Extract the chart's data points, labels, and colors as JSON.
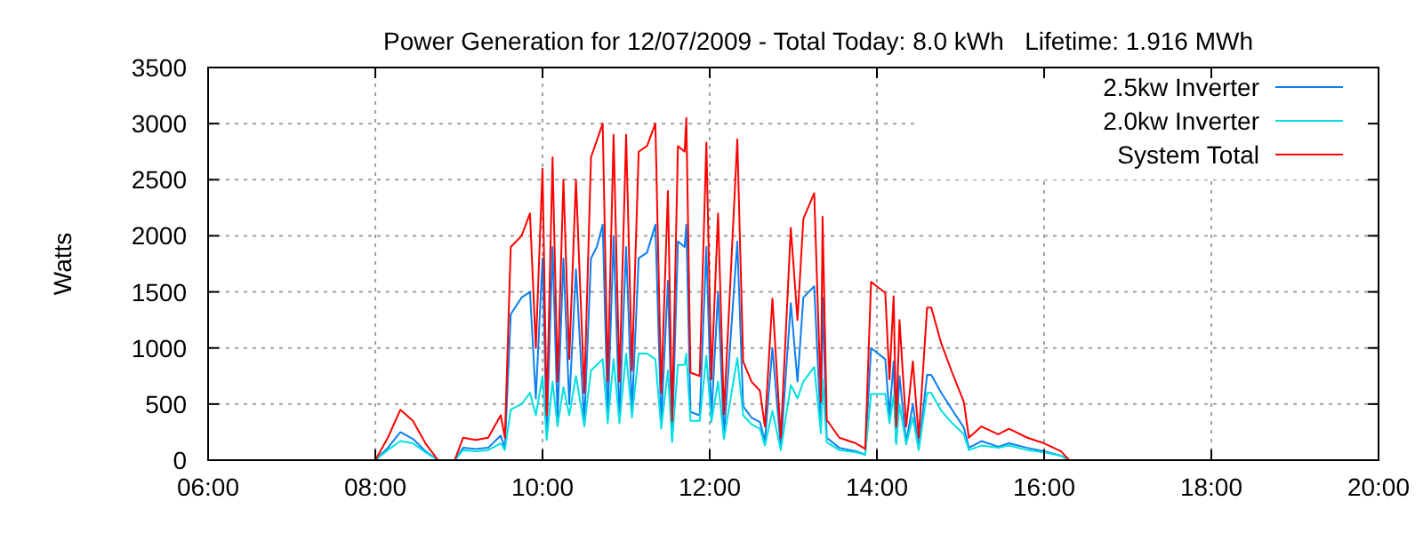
{
  "chart_data": {
    "type": "line",
    "title": "Power Generation for 12/07/2009 - Total Today: 8.0 kWh   Lifetime: 1.916 MWh",
    "ylabel": "Watts",
    "x": [
      8.0,
      8.15,
      8.3,
      8.45,
      8.6,
      8.75,
      8.95,
      9.05,
      9.2,
      9.35,
      9.5,
      9.55,
      9.62,
      9.75,
      9.85,
      9.92,
      10.0,
      10.05,
      10.12,
      10.18,
      10.25,
      10.32,
      10.4,
      10.5,
      10.58,
      10.65,
      10.72,
      10.78,
      10.85,
      10.92,
      11.0,
      11.07,
      11.15,
      11.25,
      11.35,
      11.42,
      11.5,
      11.55,
      11.62,
      11.7,
      11.72,
      11.77,
      11.88,
      11.96,
      12.02,
      12.1,
      12.17,
      12.33,
      12.4,
      12.5,
      12.6,
      12.66,
      12.75,
      12.85,
      12.97,
      13.05,
      13.12,
      13.25,
      13.33,
      13.35,
      13.4,
      13.55,
      13.75,
      13.86,
      13.93,
      14.1,
      14.15,
      14.2,
      14.23,
      14.27,
      14.35,
      14.43,
      14.5,
      14.6,
      14.65,
      14.77,
      14.9,
      15.04,
      15.1,
      15.25,
      15.45,
      15.58,
      15.8,
      16.0,
      16.2,
      16.3
    ],
    "series": [
      {
        "name": "2.5kw Inverter",
        "color": "#0a7ff0",
        "values": [
          0,
          110,
          250,
          190,
          80,
          0,
          0,
          110,
          100,
          110,
          220,
          110,
          1300,
          1450,
          1500,
          550,
          1800,
          220,
          1900,
          380,
          1800,
          500,
          1700,
          330,
          1800,
          1900,
          2100,
          380,
          2000,
          380,
          1900,
          440,
          1800,
          1850,
          2100,
          330,
          1600,
          190,
          1950,
          1900,
          2100,
          430,
          400,
          1900,
          380,
          1500,
          220,
          1950,
          480,
          380,
          340,
          170,
          1000,
          110,
          1400,
          700,
          1450,
          1550,
          280,
          1450,
          200,
          110,
          80,
          50,
          1000,
          900,
          400,
          880,
          160,
          750,
          160,
          500,
          110,
          760,
          760,
          600,
          450,
          290,
          110,
          170,
          120,
          150,
          110,
          80,
          40,
          0
        ]
      },
      {
        "name": "2.0kw Inverter",
        "color": "#00e0e0",
        "values": [
          0,
          90,
          170,
          150,
          70,
          0,
          0,
          90,
          80,
          90,
          150,
          90,
          450,
          500,
          600,
          400,
          750,
          180,
          700,
          300,
          650,
          400,
          750,
          300,
          800,
          850,
          900,
          330,
          900,
          330,
          950,
          380,
          950,
          950,
          900,
          280,
          800,
          160,
          850,
          850,
          950,
          350,
          350,
          930,
          340,
          700,
          190,
          910,
          400,
          320,
          280,
          130,
          440,
          90,
          670,
          550,
          700,
          830,
          240,
          720,
          160,
          90,
          70,
          50,
          590,
          590,
          330,
          580,
          140,
          500,
          140,
          380,
          90,
          600,
          600,
          440,
          330,
          230,
          90,
          130,
          110,
          130,
          90,
          70,
          40,
          0
        ]
      },
      {
        "name": "System Total",
        "color": "#ff0000",
        "values": [
          0,
          200,
          450,
          350,
          150,
          0,
          0,
          200,
          180,
          200,
          400,
          200,
          1900,
          2000,
          2200,
          1000,
          2600,
          400,
          2700,
          700,
          2500,
          900,
          2500,
          600,
          2700,
          2850,
          3000,
          700,
          2900,
          700,
          2900,
          800,
          2750,
          2800,
          3000,
          600,
          2400,
          350,
          2800,
          2750,
          3050,
          780,
          750,
          2830,
          720,
          2200,
          410,
          2860,
          880,
          700,
          620,
          300,
          1440,
          200,
          2070,
          1250,
          2150,
          2380,
          520,
          2170,
          360,
          200,
          150,
          100,
          1590,
          1490,
          720,
          1460,
          300,
          1250,
          300,
          880,
          200,
          1360,
          1360,
          1040,
          780,
          520,
          200,
          300,
          230,
          280,
          200,
          150,
          80,
          0
        ]
      }
    ],
    "xlim": [
      6,
      20
    ],
    "xticks": [
      {
        "value": 6,
        "label": "06:00"
      },
      {
        "value": 8,
        "label": "08:00"
      },
      {
        "value": 10,
        "label": "10:00"
      },
      {
        "value": 12,
        "label": "12:00"
      },
      {
        "value": 14,
        "label": "14:00"
      },
      {
        "value": 16,
        "label": "16:00"
      },
      {
        "value": 18,
        "label": "18:00"
      },
      {
        "value": 20,
        "label": "20:00"
      }
    ],
    "ylim": [
      0,
      3500
    ],
    "yticks": [
      0,
      500,
      1000,
      1500,
      2000,
      2500,
      3000,
      3500
    ],
    "grid": true,
    "legend": "top right",
    "line_style": "solid",
    "marker": "none"
  }
}
